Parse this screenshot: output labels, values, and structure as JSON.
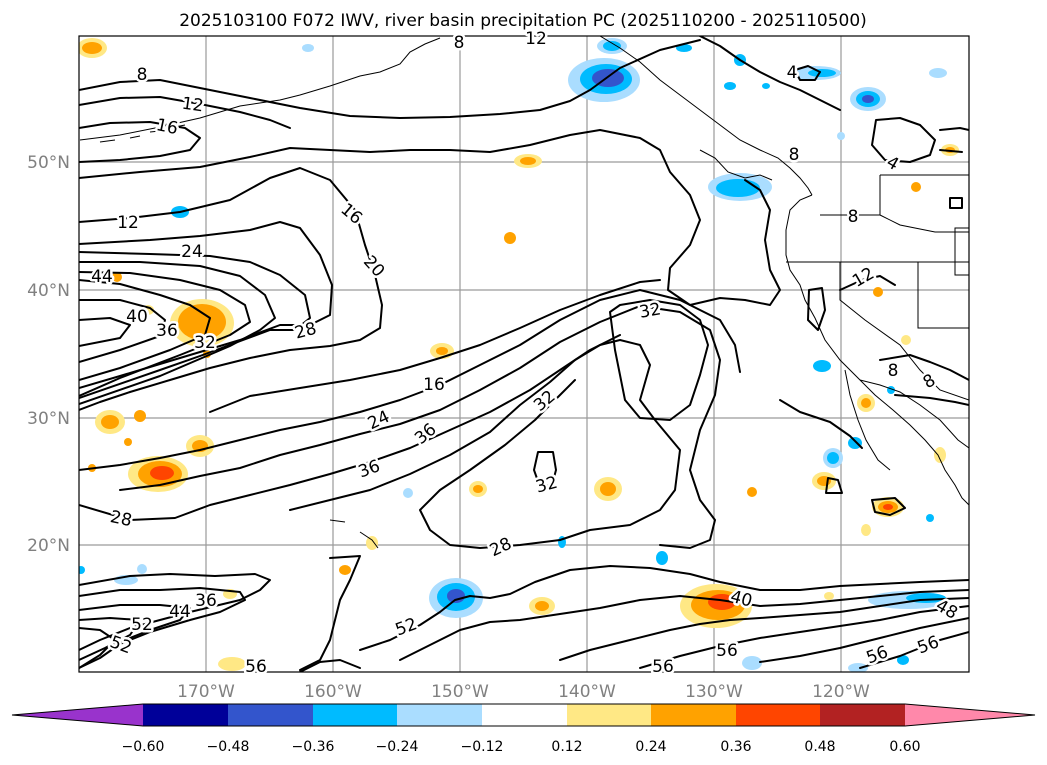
{
  "title": "2025103100 F072 IWV, river basin precipitation PC (2025110200 - 2025110500)",
  "lat_labels": [
    "50°N",
    "40°N",
    "30°N",
    "20°N"
  ],
  "lon_labels": [
    "170°W",
    "160°W",
    "150°W",
    "140°W",
    "130°W",
    "120°W"
  ],
  "colorbar": {
    "ticks": [
      "−0.60",
      "−0.48",
      "−0.36",
      "−0.24",
      "−0.12",
      "0.12",
      "0.24",
      "0.36",
      "0.48",
      "0.60"
    ],
    "colors": [
      "#9933cc",
      "#000099",
      "#3355cc",
      "#00bbff",
      "#aaddff",
      "#ffffff",
      "#ffe885",
      "#ffa200",
      "#ff4500",
      "#b22222",
      "#ff88aa"
    ]
  },
  "contour_labels": [
    {
      "text": "8",
      "id": "c8a"
    },
    {
      "text": "12",
      "id": "c12a"
    },
    {
      "text": "16",
      "id": "c16a"
    },
    {
      "text": "12",
      "id": "c12b"
    },
    {
      "text": "24",
      "id": "c24a"
    },
    {
      "text": "44",
      "id": "c44a"
    },
    {
      "text": "40",
      "id": "c40a"
    },
    {
      "text": "36",
      "id": "c36a"
    },
    {
      "text": "32",
      "id": "c32a"
    },
    {
      "text": "16",
      "id": "c16b"
    },
    {
      "text": "20",
      "id": "c20a"
    },
    {
      "text": "28",
      "id": "c28a"
    },
    {
      "text": "16",
      "id": "c16c"
    },
    {
      "text": "24",
      "id": "c24b"
    },
    {
      "text": "36",
      "id": "c36b"
    },
    {
      "text": "36",
      "id": "c36c"
    },
    {
      "text": "32",
      "id": "c32b"
    },
    {
      "text": "32",
      "id": "c32c"
    },
    {
      "text": "32",
      "id": "c32d"
    },
    {
      "text": "28",
      "id": "c28b"
    },
    {
      "text": "28",
      "id": "c28c"
    },
    {
      "text": "36",
      "id": "c36d"
    },
    {
      "text": "44",
      "id": "c44b"
    },
    {
      "text": "52",
      "id": "c52a"
    },
    {
      "text": "52",
      "id": "c52b"
    },
    {
      "text": "52",
      "id": "c52c"
    },
    {
      "text": "56",
      "id": "c56a"
    },
    {
      "text": "56",
      "id": "c56b"
    },
    {
      "text": "56",
      "id": "c56c"
    },
    {
      "text": "40",
      "id": "c40b"
    },
    {
      "text": "48",
      "id": "c48a"
    },
    {
      "text": "56",
      "id": "c56d"
    },
    {
      "text": "56",
      "id": "c56e"
    },
    {
      "text": "4",
      "id": "c4a"
    },
    {
      "text": "4",
      "id": "c4b"
    },
    {
      "text": "8",
      "id": "c8b"
    },
    {
      "text": "8",
      "id": "c8c"
    },
    {
      "text": "12",
      "id": "c12c"
    },
    {
      "text": "8",
      "id": "c8d"
    },
    {
      "text": "8",
      "id": "c8e"
    },
    {
      "text": "12",
      "id": "c12d"
    },
    {
      "text": "8",
      "id": "c8f"
    }
  ]
}
